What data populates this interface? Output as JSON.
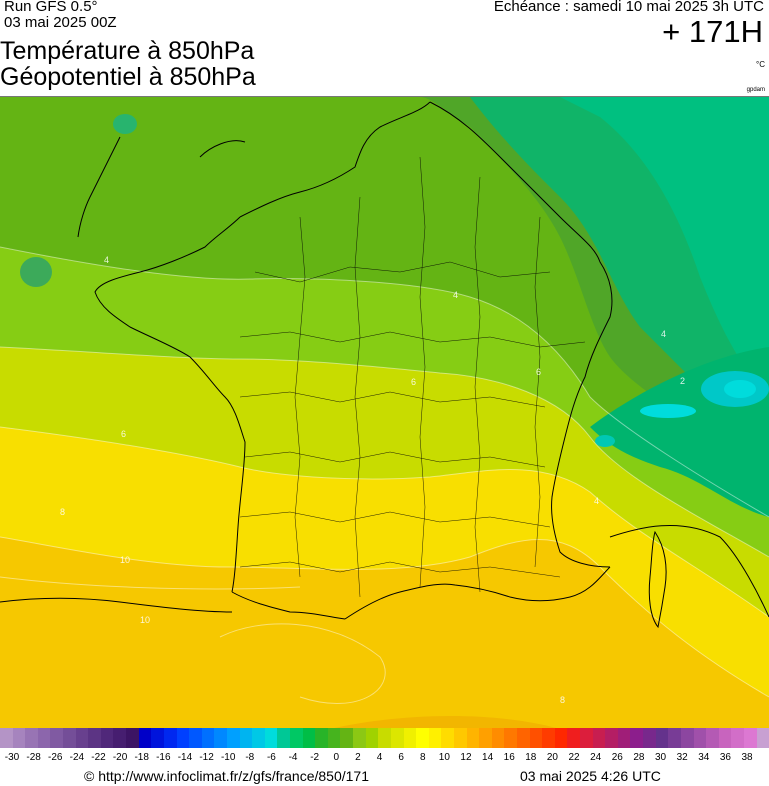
{
  "header": {
    "run": "Run GFS 0.5°",
    "date": "03 mai 2025 00Z",
    "title1": "Température à 850hPa",
    "title2": "Géopotentiel à 850hPa",
    "echeance": "Echéance : samedi 10 mai 2025 3h UTC",
    "lead": "+ 171H",
    "unit": "°C",
    "gp_unit": "gpdam"
  },
  "map": {
    "isotherm_labels": [
      {
        "id": "l1",
        "text": "4"
      },
      {
        "id": "l2",
        "text": "4"
      },
      {
        "id": "l3",
        "text": "6"
      },
      {
        "id": "l4",
        "text": "6"
      },
      {
        "id": "l5",
        "text": "6"
      },
      {
        "id": "l6",
        "text": "8"
      },
      {
        "id": "l7",
        "text": "10"
      },
      {
        "id": "l8",
        "text": "10"
      },
      {
        "id": "l9",
        "text": "8"
      },
      {
        "id": "l10",
        "text": "4"
      },
      {
        "id": "l11",
        "text": "2"
      },
      {
        "id": "l12",
        "text": "4"
      }
    ]
  },
  "scale": {
    "colors": [
      "#b494c6",
      "#a684be",
      "#9874b4",
      "#8c66ac",
      "#805aa2",
      "#744e98",
      "#68408e",
      "#5c3484",
      "#50287a",
      "#461e70",
      "#3c1464",
      "#0000c8",
      "#0014dc",
      "#0028f0",
      "#0040ff",
      "#0058ff",
      "#0070ff",
      "#0088ff",
      "#00a0ff",
      "#00b4f0",
      "#00c8e6",
      "#00dcdc",
      "#00c896",
      "#00c864",
      "#00be46",
      "#28b428",
      "#46b41e",
      "#64b414",
      "#8cc814",
      "#a0d200",
      "#c8dc00",
      "#dce600",
      "#f0f000",
      "#ffff00",
      "#fff000",
      "#ffdc00",
      "#ffc800",
      "#ffb400",
      "#ffa000",
      "#ff8c00",
      "#ff7800",
      "#ff6400",
      "#ff5000",
      "#ff3c00",
      "#ff2800",
      "#f01e1e",
      "#dc1e3c",
      "#c81e50",
      "#b41e64",
      "#a01e78",
      "#8c1e8c",
      "#78288c",
      "#64328c",
      "#783c96",
      "#8c46a0",
      "#a050aa",
      "#b45ab4",
      "#c864be",
      "#d26ec8",
      "#dc78d2",
      "#c8a0d2"
    ],
    "ticks": [
      "-30",
      "-28",
      "-26",
      "-24",
      "-22",
      "-20",
      "-18",
      "-16",
      "-14",
      "-12",
      "-10",
      "-8",
      "-6",
      "-4",
      "-2",
      "0",
      "2",
      "4",
      "6",
      "8",
      "10",
      "12",
      "14",
      "16",
      "18",
      "20",
      "22",
      "24",
      "26",
      "28",
      "30",
      "32",
      "34",
      "36",
      "38"
    ]
  },
  "footer": {
    "url": "© http://www.infoclimat.fr/z/gfs/france/850/171",
    "issued": "03 mai 2025  4:26 UTC"
  }
}
